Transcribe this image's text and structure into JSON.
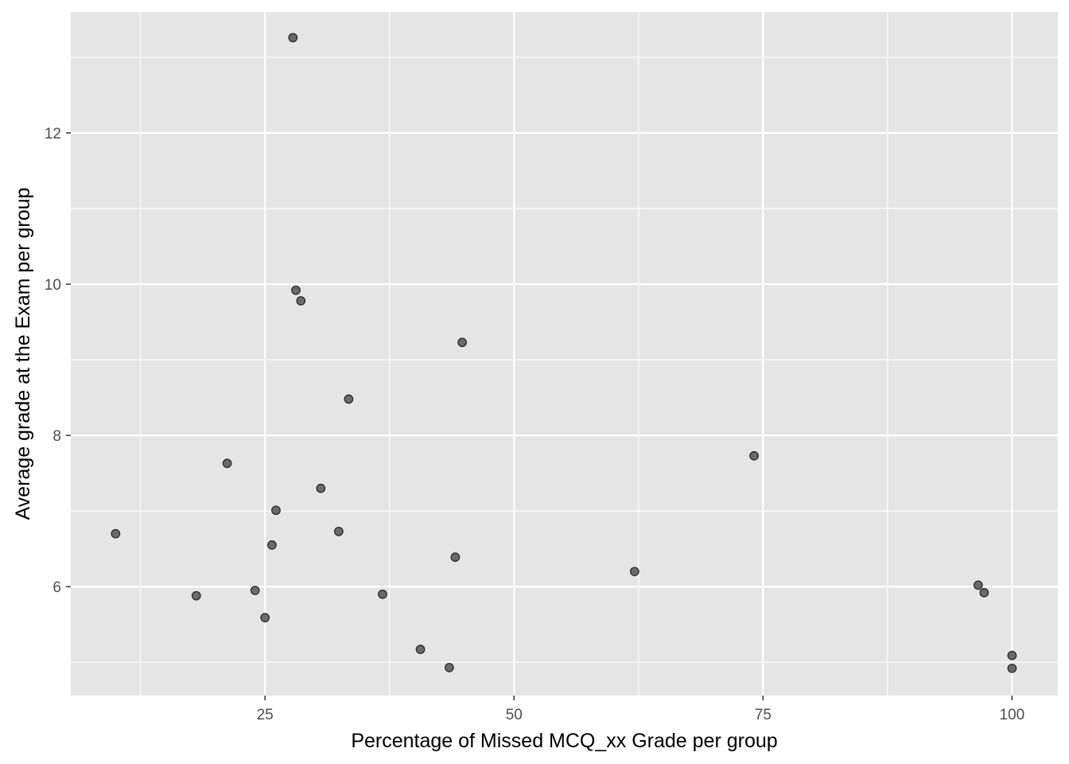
{
  "chart_data": {
    "type": "scatter",
    "title": "",
    "xlabel": "Percentage of Missed MCQ_xx Grade per group",
    "ylabel": "Average grade at the Exam per group",
    "xlim": [
      5.5,
      104.6
    ],
    "ylim": [
      4.56,
      13.6
    ],
    "x_ticks": [
      25,
      50,
      75,
      100
    ],
    "x_tick_labels": [
      "25",
      "50",
      "75",
      "100"
    ],
    "x_minor_ticks": [
      12.5,
      37.5,
      62.5,
      87.5
    ],
    "y_ticks": [
      6,
      8,
      10,
      12
    ],
    "y_tick_labels": [
      "6",
      "8",
      "10",
      "12"
    ],
    "y_minor_ticks": [
      5,
      7,
      9,
      11,
      13
    ],
    "grid": true,
    "legend": "none",
    "colors": {
      "panel": "#e5e5e5",
      "grid": "#ffffff",
      "point_fill": "#6b6b6b",
      "point_stroke": "#2a2a2a",
      "tick": "#333333"
    },
    "points": [
      {
        "x": 27.8,
        "y": 13.26
      },
      {
        "x": 28.1,
        "y": 9.92
      },
      {
        "x": 28.6,
        "y": 9.78
      },
      {
        "x": 44.8,
        "y": 9.23
      },
      {
        "x": 33.4,
        "y": 8.48
      },
      {
        "x": 21.2,
        "y": 7.63
      },
      {
        "x": 74.1,
        "y": 7.73
      },
      {
        "x": 30.6,
        "y": 7.3
      },
      {
        "x": 26.1,
        "y": 7.01
      },
      {
        "x": 10.0,
        "y": 6.7
      },
      {
        "x": 32.4,
        "y": 6.73
      },
      {
        "x": 25.7,
        "y": 6.55
      },
      {
        "x": 44.1,
        "y": 6.39
      },
      {
        "x": 62.1,
        "y": 6.2
      },
      {
        "x": 24.0,
        "y": 5.95
      },
      {
        "x": 18.1,
        "y": 5.88
      },
      {
        "x": 36.8,
        "y": 5.9
      },
      {
        "x": 25.0,
        "y": 5.59
      },
      {
        "x": 96.6,
        "y": 6.02
      },
      {
        "x": 97.2,
        "y": 5.92
      },
      {
        "x": 40.6,
        "y": 5.17
      },
      {
        "x": 43.5,
        "y": 4.93
      },
      {
        "x": 100.0,
        "y": 5.09
      },
      {
        "x": 100.0,
        "y": 4.92
      }
    ]
  }
}
